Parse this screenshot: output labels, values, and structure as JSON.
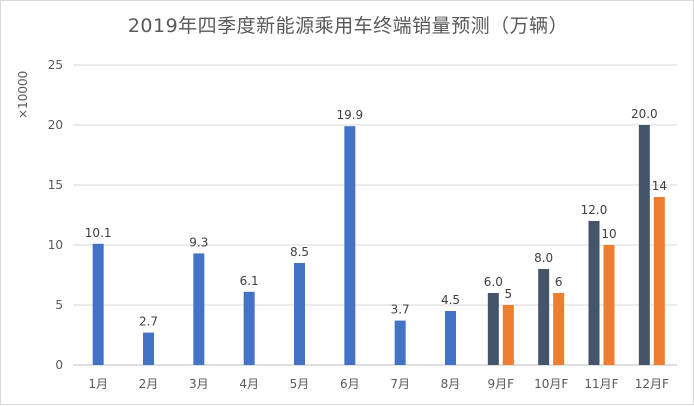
{
  "chart_data": {
    "type": "bar",
    "title": "2019年四季度新能源乘用车终端销量预测（万辆）",
    "ylabel": "×10000",
    "xlabel": "",
    "ylim": [
      0,
      25
    ],
    "yticks": [
      0,
      5,
      10,
      15,
      20,
      25
    ],
    "grid": true,
    "legend": "none",
    "categories": [
      "1月",
      "2月",
      "3月",
      "4月",
      "5月",
      "6月",
      "7月",
      "8月",
      "9月F",
      "10月F",
      "11月F",
      "12月F"
    ],
    "series": [
      {
        "color": "#4472c4",
        "values": [
          10.1,
          2.7,
          9.3,
          6.1,
          8.5,
          19.9,
          3.7,
          4.5,
          null,
          null,
          null,
          null
        ],
        "labels": [
          "10.1",
          "2.7",
          "9.3",
          "6.1",
          "8.5",
          "19.9",
          "3.7",
          "4.5",
          null,
          null,
          null,
          null
        ]
      },
      {
        "color": "#44546a",
        "values": [
          null,
          null,
          null,
          null,
          null,
          null,
          null,
          null,
          6.0,
          8.0,
          12.0,
          20.0
        ],
        "labels": [
          null,
          null,
          null,
          null,
          null,
          null,
          null,
          null,
          "6.0",
          "8.0",
          "12.0",
          "20.0"
        ]
      },
      {
        "color": "#ed7d31",
        "values": [
          null,
          null,
          null,
          null,
          null,
          null,
          null,
          null,
          5,
          6,
          10,
          14
        ],
        "labels": [
          null,
          null,
          null,
          null,
          null,
          null,
          null,
          null,
          "5",
          "6",
          "10",
          "14"
        ]
      }
    ],
    "colors": {
      "axis": "#bfbfbf",
      "grid": "#d9d9d9",
      "text": "#595959"
    }
  }
}
